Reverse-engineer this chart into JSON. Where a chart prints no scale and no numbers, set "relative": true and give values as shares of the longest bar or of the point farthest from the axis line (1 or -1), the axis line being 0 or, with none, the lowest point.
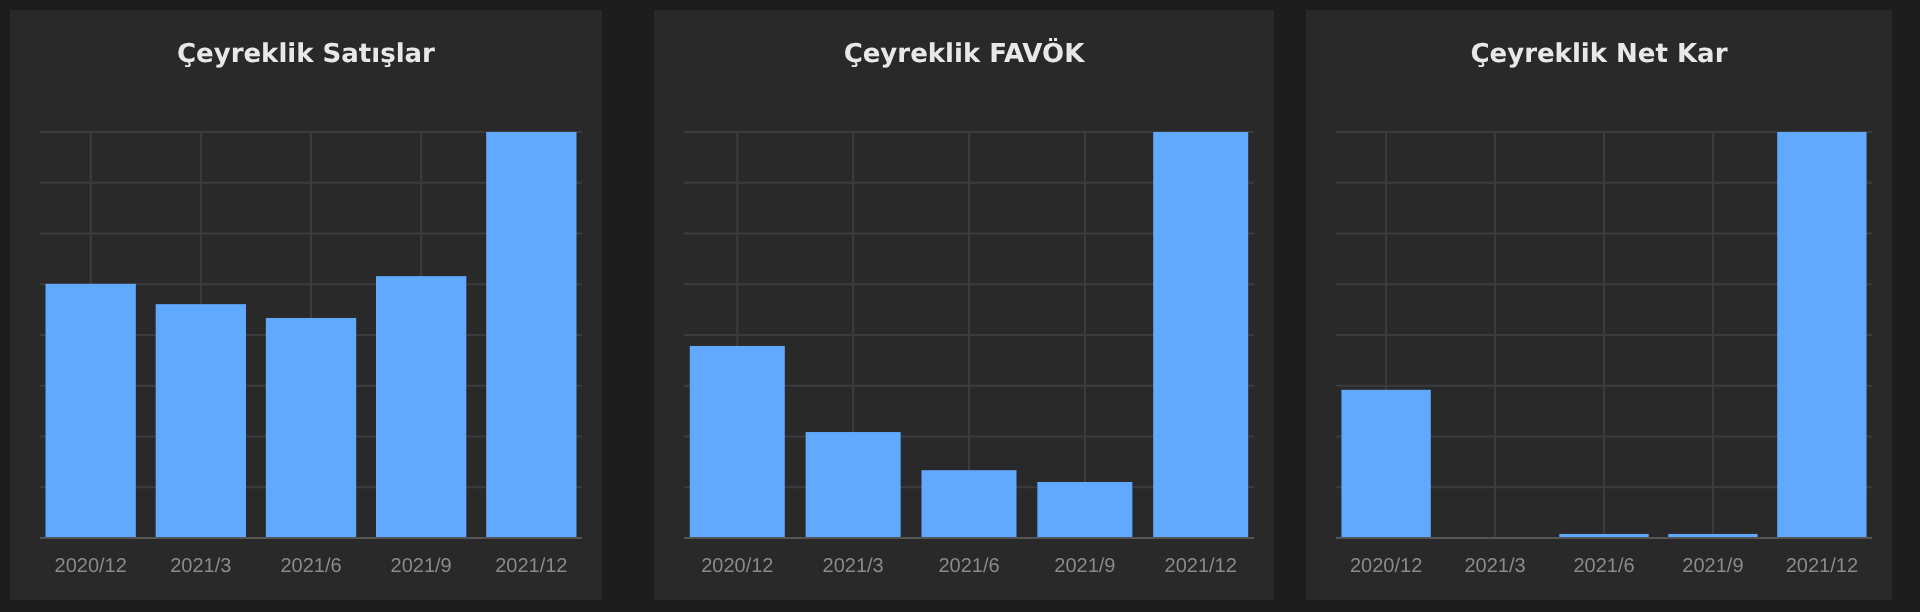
{
  "chart_data": [
    {
      "type": "bar",
      "title": "Çeyreklik Satışlar",
      "categories": [
        "2020/12",
        "2021/3",
        "2021/6",
        "2021/9",
        "2021/12"
      ],
      "values": [
        0.626,
        0.576,
        0.542,
        0.645,
        1
      ],
      "color": "#61a8ff",
      "relative": true,
      "grid": true
    },
    {
      "type": "bar",
      "title": "Çeyreklik FAVÖK",
      "categories": [
        "2020/12",
        "2021/3",
        "2021/6",
        "2021/9",
        "2021/12"
      ],
      "values": [
        0.473,
        0.261,
        0.167,
        0.138,
        1
      ],
      "color": "#61a8ff",
      "relative": true,
      "grid": true
    },
    {
      "type": "bar",
      "title": "Çeyreklik Net Kar",
      "categories": [
        "2020/12",
        "2021/3",
        "2021/6",
        "2021/9",
        "2021/12"
      ],
      "values": [
        0.365,
        0,
        0.01,
        0.01,
        1
      ],
      "color": "#61a8ff",
      "relative": true,
      "grid": true
    }
  ]
}
